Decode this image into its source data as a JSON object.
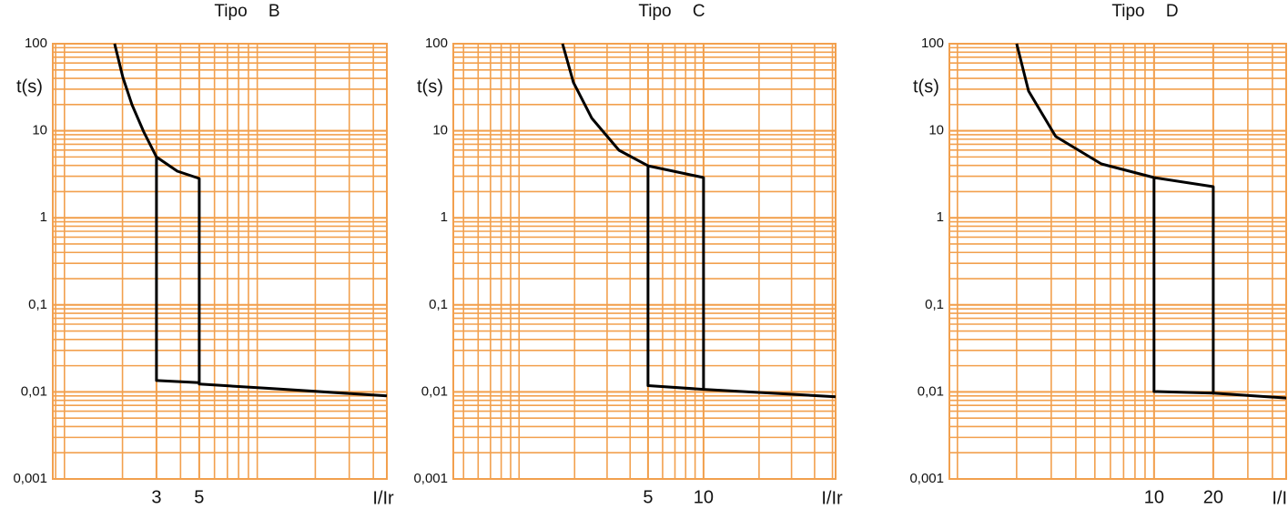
{
  "chart_data": [
    {
      "type": "line",
      "title": "Tipo B",
      "ylabel": "t(s)",
      "xlabel": "I/Ir",
      "xscale": "log",
      "yscale": "log",
      "grid": true,
      "minor_grid": true,
      "grid_color": "#f2a04e",
      "color": "#000000",
      "xlim": [
        0.87,
        47
      ],
      "xticks": [
        3,
        5
      ],
      "ylim": [
        0.001,
        100
      ],
      "yticks": [
        {
          "value": 0.001,
          "label": "0,001"
        },
        {
          "value": 0.01,
          "label": "0,01"
        },
        {
          "value": 0.1,
          "label": "0,1"
        },
        1,
        10,
        100
      ],
      "x": [
        1.82,
        2.01,
        2.24,
        2.58,
        3,
        3.85,
        5,
        5,
        12,
        47,
        null,
        3,
        3,
        5
      ],
      "values": [
        100,
        41,
        19.9,
        9.66,
        5.0,
        3.43,
        2.83,
        0.0123,
        0.0109,
        0.009,
        null,
        5.0,
        0.0135,
        0.0128
      ]
    },
    {
      "type": "line",
      "title": "Tipo C",
      "ylabel": "t(s)",
      "xlabel": "I/Ir",
      "xscale": "log",
      "yscale": "log",
      "grid": true,
      "minor_grid": true,
      "grid_color": "#f2a04e",
      "color": "#000000",
      "xlim": [
        0.44,
        52
      ],
      "xticks": [
        5,
        10
      ],
      "ylim": [
        0.001,
        100
      ],
      "yticks": [
        {
          "value": 0.001,
          "label": "0,001"
        },
        {
          "value": 0.01,
          "label": "0,01"
        },
        {
          "value": 0.1,
          "label": "0,1"
        },
        1,
        10,
        100
      ],
      "x": [
        1.72,
        1.97,
        2.48,
        3.48,
        5,
        10,
        10,
        52,
        null,
        5,
        5,
        10
      ],
      "values": [
        100,
        36,
        13.9,
        5.97,
        3.96,
        2.9,
        0.0107,
        0.0088,
        null,
        3.96,
        0.0118,
        0.0107
      ]
    },
    {
      "type": "line",
      "title": "Tipo D",
      "ylabel": "t(s)",
      "xlabel": "I/Ir",
      "xscale": "log",
      "yscale": "log",
      "grid": true,
      "minor_grid": true,
      "grid_color": "#f2a04e",
      "color": "#000000",
      "xlim": [
        0.91,
        47
      ],
      "xticks": [
        10,
        20
      ],
      "ylim": [
        0.001,
        100
      ],
      "yticks": [
        {
          "value": 0.001,
          "label": "0,001"
        },
        {
          "value": 0.01,
          "label": "0,01"
        },
        {
          "value": 0.1,
          "label": "0,1"
        },
        1,
        10,
        100
      ],
      "x": [
        2.0,
        2.3,
        3.16,
        5.39,
        10,
        20,
        20,
        47,
        null,
        10,
        10,
        20
      ],
      "values": [
        100,
        28.6,
        8.6,
        4.16,
        2.9,
        2.28,
        0.0097,
        0.0085,
        null,
        2.9,
        0.0101,
        0.0097
      ]
    }
  ]
}
